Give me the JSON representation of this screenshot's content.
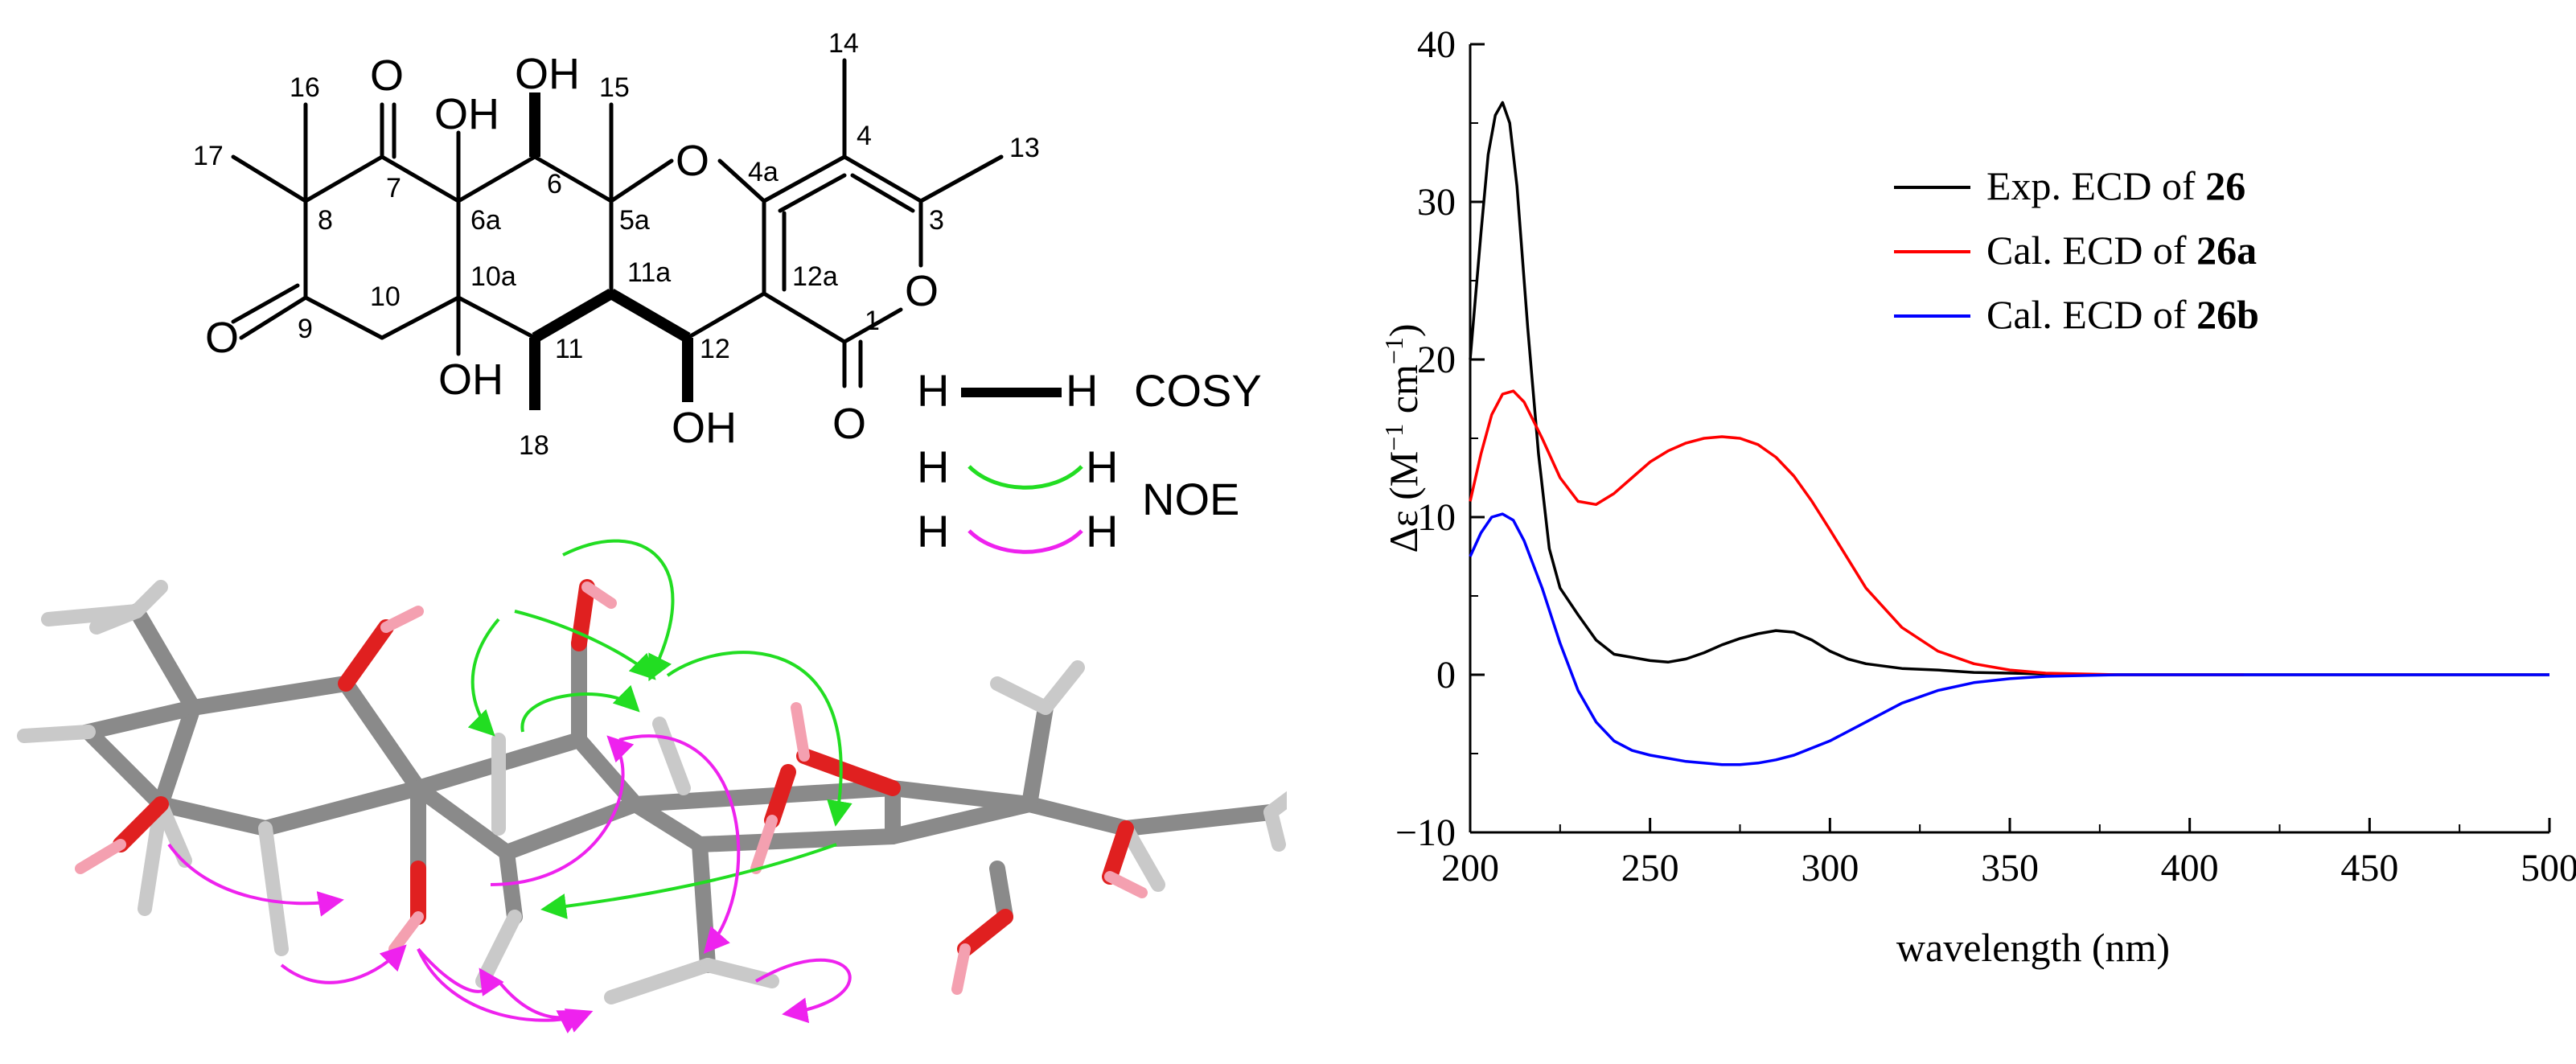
{
  "structure": {
    "atoms": {
      "O7": "O",
      "O9": "O",
      "O1": "O",
      "Oring": "O",
      "Olac": "O",
      "OH6": "OH",
      "OH6a": "OH",
      "OH10a": "OH",
      "OH12": "OH"
    },
    "numbers": {
      "n1": "1",
      "n3": "3",
      "n4": "4",
      "n4a": "4a",
      "n5a": "5a",
      "n6": "6",
      "n6a": "6a",
      "n7": "7",
      "n8": "8",
      "n9": "9",
      "n10": "10",
      "n10a": "10a",
      "n11": "11",
      "n11a": "11a",
      "n12": "12",
      "n12a": "12a",
      "n13": "13",
      "n14": "14",
      "n15": "15",
      "n16": "16",
      "n17": "17",
      "n18": "18"
    }
  },
  "legend_corr": {
    "h": "H",
    "cosy": "COSY",
    "noe": "NOE",
    "colors": {
      "cosy": "#000000",
      "noe_green": "#22dd22",
      "noe_magenta": "#ee22ee"
    }
  },
  "chart_data": {
    "type": "line",
    "xlabel": "wavelength (nm)",
    "ylabel_prefix": "Δε (M",
    "ylabel_sup1": "−1",
    "ylabel_mid": " cm",
    "ylabel_sup2": "−1",
    "ylabel_suffix": ")",
    "xlim": [
      200,
      500
    ],
    "ylim": [
      -10,
      40
    ],
    "xticks": [
      200,
      250,
      300,
      350,
      400,
      450,
      500
    ],
    "yticks": [
      -10,
      0,
      10,
      20,
      30,
      40
    ],
    "xtick_labels": [
      "200",
      "250",
      "300",
      "350",
      "400",
      "450",
      "500"
    ],
    "ytick_labels": [
      "−10",
      "0",
      "10",
      "20",
      "30",
      "40"
    ],
    "legend_position": "top-right",
    "series": [
      {
        "name": "Exp. ECD of 26",
        "name_prefix": "Exp. ECD of ",
        "name_bold": "26",
        "color": "#000000",
        "x": [
          200,
          203,
          205,
          207,
          209,
          211,
          213,
          216,
          219,
          222,
          225,
          230,
          235,
          240,
          245,
          250,
          255,
          260,
          265,
          270,
          275,
          280,
          285,
          290,
          295,
          300,
          305,
          310,
          320,
          330,
          340,
          350,
          360,
          370,
          380,
          390,
          400,
          410,
          420,
          430,
          440,
          450,
          460,
          470,
          480,
          490,
          500
        ],
        "y": [
          20,
          28,
          33,
          35.5,
          36.3,
          35,
          31,
          22,
          14,
          8,
          5.5,
          3.8,
          2.2,
          1.3,
          1.1,
          0.9,
          0.8,
          1.0,
          1.4,
          1.9,
          2.3,
          2.6,
          2.8,
          2.7,
          2.2,
          1.5,
          1.0,
          0.7,
          0.4,
          0.3,
          0.15,
          0.1,
          0.05,
          0.0,
          0.0,
          0.0,
          0.0,
          0.0,
          0.0,
          0.0,
          0.0,
          0.0,
          0.0,
          0.0,
          0.0,
          0.0,
          0.0
        ]
      },
      {
        "name": "Cal. ECD of 26a",
        "name_prefix": "Cal. ECD of ",
        "name_bold": "26a",
        "color": "#ff0000",
        "x": [
          200,
          203,
          206,
          209,
          212,
          215,
          220,
          225,
          230,
          235,
          240,
          245,
          250,
          255,
          260,
          265,
          270,
          275,
          280,
          285,
          290,
          295,
          300,
          310,
          320,
          330,
          340,
          350,
          360,
          370,
          380,
          390,
          400,
          410,
          415
        ],
        "y": [
          11,
          14,
          16.5,
          17.8,
          18,
          17.3,
          15,
          12.5,
          11,
          10.8,
          11.5,
          12.5,
          13.5,
          14.2,
          14.7,
          15.0,
          15.1,
          15.0,
          14.6,
          13.8,
          12.6,
          11.0,
          9.2,
          5.5,
          3.0,
          1.5,
          0.7,
          0.3,
          0.1,
          0.05,
          0.0,
          0.0,
          0.0,
          0.0,
          0.0
        ]
      },
      {
        "name": "Cal. ECD of 26b",
        "name_prefix": "Cal. ECD of ",
        "name_bold": "26b",
        "color": "#0000ff",
        "x": [
          200,
          203,
          206,
          209,
          212,
          215,
          220,
          225,
          230,
          235,
          240,
          245,
          250,
          260,
          270,
          275,
          280,
          285,
          290,
          300,
          310,
          320,
          330,
          340,
          350,
          360,
          370,
          380,
          390,
          400,
          410,
          420,
          440,
          460,
          480,
          500
        ],
        "y": [
          7.5,
          9,
          10,
          10.2,
          9.8,
          8.5,
          5.5,
          2.0,
          -1.0,
          -3.0,
          -4.2,
          -4.8,
          -5.1,
          -5.5,
          -5.7,
          -5.7,
          -5.6,
          -5.4,
          -5.1,
          -4.2,
          -3.0,
          -1.8,
          -1.0,
          -0.5,
          -0.25,
          -0.1,
          -0.05,
          0.0,
          0.0,
          0.0,
          0.0,
          0.0,
          0.0,
          0.0,
          0.0,
          0.0
        ]
      }
    ]
  }
}
